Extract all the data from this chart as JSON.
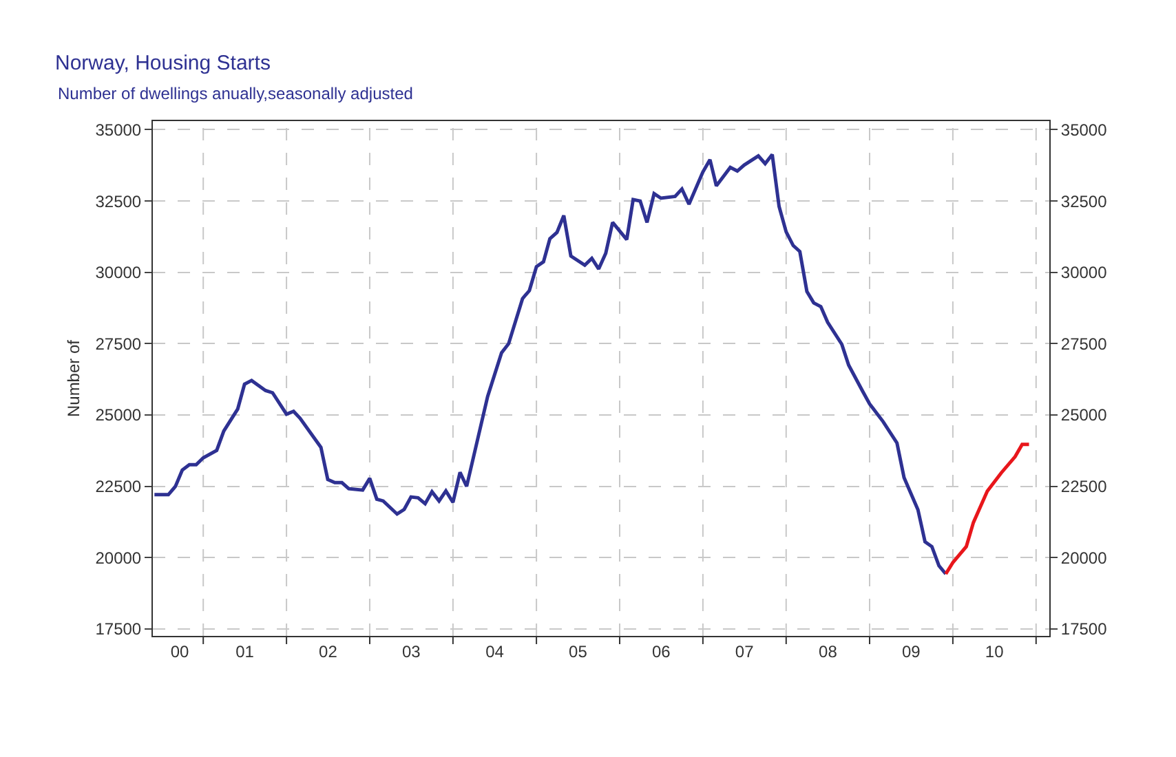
{
  "chart_data": {
    "type": "line",
    "title": "Norway, Housing Starts",
    "subtitle": "Number of dwellings anually,seasonally adjusted",
    "ylabel": "Number of",
    "xlim": [
      "2000-05-25",
      "2011-02-28"
    ],
    "ylim": [
      17260,
      35300
    ],
    "y2lim": [
      17260,
      35300
    ],
    "xticks": [
      {
        "value": "2000-09-20",
        "label": "00"
      },
      {
        "value": "2001-01-01",
        "label": null
      },
      {
        "value": "2001-07-02",
        "label": "01"
      },
      {
        "value": "2002-01-01",
        "label": null
      },
      {
        "value": "2002-07-02",
        "label": "02"
      },
      {
        "value": "2003-01-01",
        "label": null
      },
      {
        "value": "2003-07-02",
        "label": "03"
      },
      {
        "value": "2004-01-01",
        "label": null
      },
      {
        "value": "2004-07-02",
        "label": "04"
      },
      {
        "value": "2005-01-01",
        "label": null
      },
      {
        "value": "2005-07-02",
        "label": "05"
      },
      {
        "value": "2006-01-01",
        "label": null
      },
      {
        "value": "2006-07-02",
        "label": "06"
      },
      {
        "value": "2007-01-01",
        "label": null
      },
      {
        "value": "2007-07-02",
        "label": "07"
      },
      {
        "value": "2008-01-01",
        "label": null
      },
      {
        "value": "2008-07-02",
        "label": "08"
      },
      {
        "value": "2009-01-01",
        "label": null
      },
      {
        "value": "2009-07-02",
        "label": "09"
      },
      {
        "value": "2010-01-01",
        "label": null
      },
      {
        "value": "2010-07-02",
        "label": "10"
      },
      {
        "value": "2011-01-01",
        "label": null
      }
    ],
    "yticks": [
      17500,
      20000,
      22500,
      25000,
      27500,
      30000,
      32500,
      35000
    ],
    "y2ticks": [
      17500,
      20000,
      22500,
      25000,
      27500,
      30000,
      32500,
      35000
    ],
    "grid": true,
    "marker": "none",
    "line_style": "solid",
    "series": [
      {
        "color": "#2e3192",
        "x": [
          "2000-06",
          "2000-08",
          "2000-09",
          "2000-10",
          "2000-11",
          "2000-12",
          "2001-01",
          "2001-03",
          "2001-04",
          "2001-06",
          "2001-07",
          "2001-08",
          "2001-10",
          "2001-11",
          "2002-01",
          "2002-02",
          "2002-03",
          "2002-06",
          "2002-07",
          "2002-08",
          "2002-09",
          "2002-10",
          "2002-12",
          "2003-01",
          "2003-02",
          "2003-03",
          "2003-05",
          "2003-06",
          "2003-07",
          "2003-08",
          "2003-09",
          "2003-10",
          "2003-11",
          "2003-12",
          "2004-01",
          "2004-02",
          "2004-03",
          "2004-06",
          "2004-08",
          "2004-09",
          "2004-11",
          "2004-12",
          "2005-01",
          "2005-02",
          "2005-03",
          "2005-04",
          "2005-05",
          "2005-06",
          "2005-08",
          "2005-09",
          "2005-10",
          "2005-11",
          "2005-12",
          "2006-02",
          "2006-03",
          "2006-04",
          "2006-05",
          "2006-06",
          "2006-07",
          "2006-09",
          "2006-10",
          "2006-11",
          "2007-01",
          "2007-02",
          "2007-03",
          "2007-05",
          "2007-06",
          "2007-07",
          "2007-09",
          "2007-10",
          "2007-11",
          "2007-12",
          "2008-01",
          "2008-02",
          "2008-03",
          "2008-04",
          "2008-05",
          "2008-06",
          "2008-07",
          "2008-09",
          "2008-10",
          "2008-12",
          "2009-01",
          "2009-03",
          "2009-05",
          "2009-06",
          "2009-08",
          "2009-09",
          "2009-10",
          "2009-11",
          "2009-12"
        ],
        "values": [
          22210,
          22210,
          22500,
          23070,
          23260,
          23260,
          23500,
          23760,
          24440,
          25210,
          26080,
          26210,
          25860,
          25780,
          25030,
          25130,
          24890,
          23870,
          22740,
          22630,
          22630,
          22420,
          22370,
          22780,
          22050,
          21990,
          21530,
          21690,
          22130,
          22100,
          21890,
          22310,
          21990,
          22340,
          21940,
          22990,
          22500,
          25650,
          27180,
          27500,
          29080,
          29360,
          30200,
          30370,
          31180,
          31400,
          31990,
          30570,
          30250,
          30490,
          30120,
          30670,
          31750,
          31150,
          32550,
          32500,
          31750,
          32760,
          32600,
          32660,
          32920,
          32390,
          33520,
          33950,
          33030,
          33680,
          33550,
          33760,
          34080,
          33810,
          34130,
          32310,
          31420,
          30940,
          30730,
          29330,
          28930,
          28800,
          28250,
          27480,
          26750,
          25840,
          25390,
          24770,
          24020,
          22810,
          21680,
          20560,
          20390,
          19720,
          19430
        ]
      },
      {
        "color": "#e8161b",
        "x": [
          "2009-12",
          "2010-01",
          "2010-03",
          "2010-04",
          "2010-06",
          "2010-08",
          "2010-10",
          "2010-11",
          "2010-12"
        ],
        "values": [
          19430,
          19830,
          20390,
          21230,
          22330,
          22970,
          23540,
          23970,
          23970
        ]
      }
    ]
  }
}
